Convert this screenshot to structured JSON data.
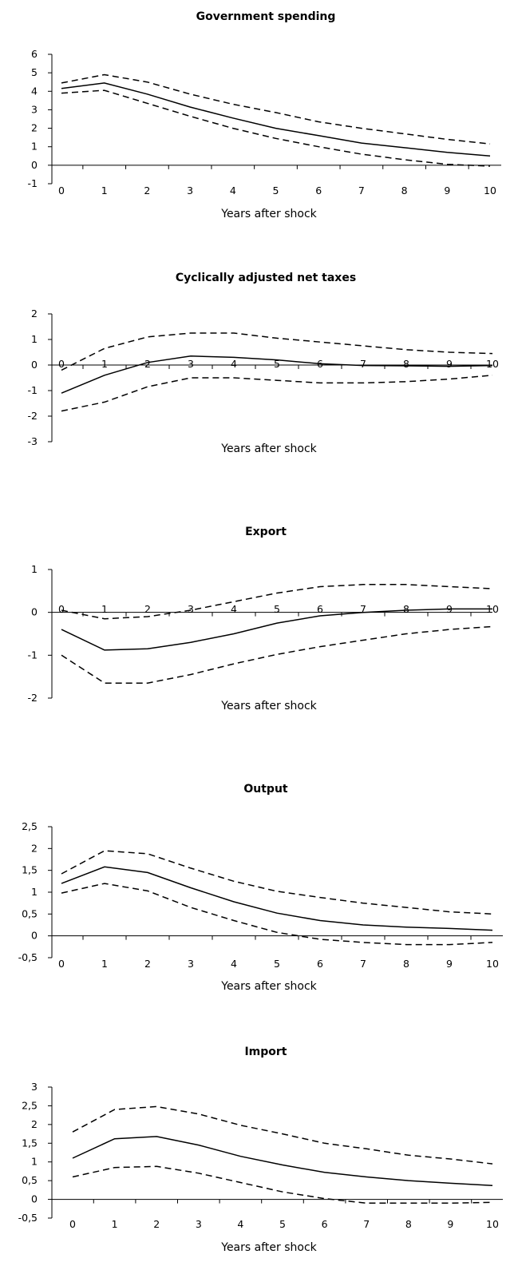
{
  "chart_data": [
    {
      "type": "line",
      "title": "Government spending",
      "xlabel": "Years after shock",
      "x": [
        0,
        1,
        2,
        3,
        4,
        5,
        6,
        7,
        8,
        9,
        10
      ],
      "ylim": [
        -1,
        6
      ],
      "yticks": [
        "-1",
        "0",
        "1",
        "2",
        "3",
        "4",
        "5",
        "6"
      ],
      "ytick_values": [
        -1,
        0,
        1,
        2,
        3,
        4,
        5,
        6
      ],
      "xticks": [
        "0",
        "1",
        "2",
        "3",
        "4",
        "5",
        "6",
        "7",
        "8",
        "9",
        "10"
      ],
      "series": [
        {
          "role": "estimate",
          "values": [
            4.15,
            4.45,
            3.85,
            3.15,
            2.55,
            2.0,
            1.6,
            1.2,
            0.95,
            0.7,
            0.5
          ]
        },
        {
          "role": "upper",
          "values": [
            4.45,
            4.9,
            4.5,
            3.85,
            3.3,
            2.85,
            2.35,
            2.0,
            1.7,
            1.4,
            1.15
          ]
        },
        {
          "role": "lower",
          "values": [
            3.9,
            4.05,
            3.35,
            2.65,
            2.0,
            1.45,
            1.0,
            0.6,
            0.3,
            0.05,
            -0.05
          ]
        }
      ]
    },
    {
      "type": "line",
      "title": "Cyclically adjusted net taxes",
      "xlabel": "Years after shock",
      "x": [
        0,
        1,
        2,
        3,
        4,
        5,
        6,
        7,
        8,
        9,
        10
      ],
      "ylim": [
        -3,
        2
      ],
      "yticks": [
        "-3",
        "-2",
        "-1",
        "0",
        "1",
        "2"
      ],
      "ytick_values": [
        -3,
        -2,
        -1,
        0,
        1,
        2
      ],
      "xticks": [
        "0",
        "1",
        "2",
        "3",
        "4",
        "5",
        "6",
        "7",
        "8",
        "9",
        "10"
      ],
      "series": [
        {
          "role": "estimate",
          "values": [
            -1.1,
            -0.4,
            0.1,
            0.35,
            0.3,
            0.2,
            0.05,
            -0.02,
            -0.03,
            -0.05,
            -0.02
          ]
        },
        {
          "role": "upper",
          "values": [
            -0.2,
            0.65,
            1.1,
            1.25,
            1.25,
            1.05,
            0.9,
            0.75,
            0.6,
            0.5,
            0.45
          ]
        },
        {
          "role": "lower",
          "values": [
            -1.8,
            -1.45,
            -0.85,
            -0.5,
            -0.5,
            -0.6,
            -0.7,
            -0.7,
            -0.65,
            -0.55,
            -0.4
          ]
        }
      ]
    },
    {
      "type": "line",
      "title": "Export",
      "xlabel": "Years after shock",
      "x": [
        0,
        1,
        2,
        3,
        4,
        5,
        6,
        7,
        8,
        9,
        10
      ],
      "ylim": [
        -2,
        1
      ],
      "yticks": [
        "-2",
        "-1",
        "0",
        "1"
      ],
      "ytick_values": [
        -2,
        -1,
        0,
        1
      ],
      "xticks": [
        "0",
        "1",
        "2",
        "3",
        "4",
        "5",
        "6",
        "7",
        "8",
        "9",
        "10"
      ],
      "series": [
        {
          "role": "estimate",
          "values": [
            -0.4,
            -0.88,
            -0.85,
            -0.7,
            -0.5,
            -0.25,
            -0.08,
            0.0,
            0.05,
            0.08,
            0.08
          ]
        },
        {
          "role": "upper",
          "values": [
            0.05,
            -0.15,
            -0.1,
            0.05,
            0.25,
            0.45,
            0.6,
            0.65,
            0.65,
            0.6,
            0.55
          ]
        },
        {
          "role": "lower",
          "values": [
            -1.0,
            -1.65,
            -1.65,
            -1.45,
            -1.2,
            -0.98,
            -0.8,
            -0.65,
            -0.5,
            -0.4,
            -0.33
          ]
        }
      ]
    },
    {
      "type": "line",
      "title": "Output",
      "xlabel": "Years after shock",
      "x": [
        0,
        1,
        2,
        3,
        4,
        5,
        6,
        7,
        8,
        9,
        10
      ],
      "ylim": [
        -0.5,
        2.5
      ],
      "yticks": [
        "-0,5",
        "0",
        "0,5",
        "1",
        "1,5",
        "2",
        "2,5"
      ],
      "ytick_values": [
        -0.5,
        0,
        0.5,
        1,
        1.5,
        2,
        2.5
      ],
      "xticks": [
        "0",
        "1",
        "2",
        "3",
        "4",
        "5",
        "6",
        "7",
        "8",
        "9",
        "10"
      ],
      "series": [
        {
          "role": "estimate",
          "values": [
            1.2,
            1.58,
            1.45,
            1.1,
            0.78,
            0.52,
            0.35,
            0.25,
            0.2,
            0.17,
            0.13
          ]
        },
        {
          "role": "upper",
          "values": [
            1.42,
            1.95,
            1.88,
            1.55,
            1.25,
            1.02,
            0.88,
            0.75,
            0.65,
            0.55,
            0.5
          ]
        },
        {
          "role": "lower",
          "values": [
            0.98,
            1.2,
            1.03,
            0.65,
            0.35,
            0.08,
            -0.08,
            -0.15,
            -0.2,
            -0.2,
            -0.15
          ]
        }
      ]
    },
    {
      "type": "line",
      "title": "Import",
      "xlabel": "Years after shock",
      "x": [
        0,
        1,
        2,
        3,
        4,
        5,
        6,
        7,
        8,
        9,
        10
      ],
      "ylim": [
        -0.5,
        3
      ],
      "yticks": [
        "-0,5",
        "0",
        "0,5",
        "1",
        "1,5",
        "2",
        "2,5",
        "3"
      ],
      "ytick_values": [
        -0.5,
        0,
        0.5,
        1,
        1.5,
        2,
        2.5,
        3
      ],
      "xticks": [
        "0",
        "1",
        "2",
        "3",
        "4",
        "5",
        "6",
        "7",
        "8",
        "9",
        "10"
      ],
      "series": [
        {
          "role": "estimate",
          "values": [
            1.1,
            1.62,
            1.68,
            1.45,
            1.15,
            0.92,
            0.72,
            0.6,
            0.5,
            0.43,
            0.37
          ]
        },
        {
          "role": "upper",
          "values": [
            1.8,
            2.4,
            2.48,
            2.28,
            1.98,
            1.75,
            1.5,
            1.35,
            1.18,
            1.08,
            0.95
          ]
        },
        {
          "role": "lower",
          "values": [
            0.6,
            0.85,
            0.88,
            0.7,
            0.45,
            0.2,
            0.02,
            -0.1,
            -0.1,
            -0.1,
            -0.08
          ]
        }
      ]
    }
  ]
}
